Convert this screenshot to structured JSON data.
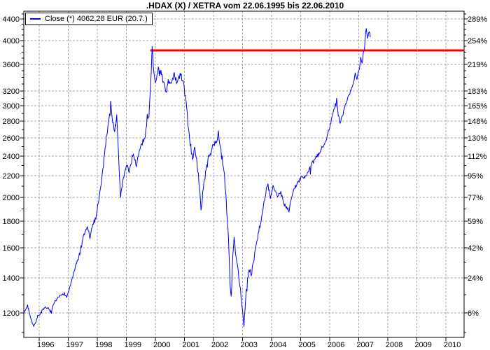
{
  "title": ".HDAX (X) / XETRA vom 22.06.1995 bis 22.06.2010",
  "legend": {
    "label": "Close (*) 4062,28 EUR (20.7.)"
  },
  "colors": {
    "series": "#0000ff",
    "resistance_line": "#ff0000",
    "grid": "#a9a9a9",
    "axis": "#000000",
    "text": "#000000",
    "background": "#ffffff"
  },
  "axes": {
    "y_left": {
      "ticks": [
        4400,
        4000,
        3600,
        3200,
        3000,
        2800,
        2600,
        2400,
        2200,
        2000,
        1800,
        1600,
        1400,
        1200
      ]
    },
    "y_right": {
      "items": [
        {
          "label": "289%",
          "at": 4400
        },
        {
          "label": "254%",
          "at": 4000
        },
        {
          "label": "219%",
          "at": 3600
        },
        {
          "label": "183%",
          "at": 3200
        },
        {
          "label": "165%",
          "at": 3000
        },
        {
          "label": "148%",
          "at": 2800
        },
        {
          "label": "130%",
          "at": 2600
        },
        {
          "label": "112%",
          "at": 2400
        },
        {
          "label": "95%",
          "at": 2200
        },
        {
          "label": "77%",
          "at": 2000
        },
        {
          "label": "59%",
          "at": 1800
        },
        {
          "label": "42%",
          "at": 1600
        },
        {
          "label": "24%",
          "at": 1400
        },
        {
          "label": "6%",
          "at": 1200
        }
      ]
    },
    "x": {
      "ticks": [
        1996,
        1997,
        1998,
        1999,
        2000,
        2001,
        2002,
        2003,
        2004,
        2005,
        2006,
        2007,
        2008,
        2009,
        2010
      ]
    }
  },
  "chart_data": {
    "type": "line",
    "title": ".HDAX (X) / XETRA vom 22.06.1995 bis 22.06.2010",
    "yscale": "log",
    "grid": true,
    "xlim": [
      1995.47,
      2010.63
    ],
    "ylim": [
      1076,
      4555
    ],
    "hline": {
      "value": 3830,
      "start_x": 1999.83,
      "end_x": 2010.63
    },
    "series": [
      {
        "name": "Close",
        "last_value": "4062,28 EUR",
        "last_date": "20.7.",
        "points": [
          [
            1995.47,
            1195
          ],
          [
            1995.6,
            1240
          ],
          [
            1995.72,
            1170
          ],
          [
            1995.81,
            1128
          ],
          [
            1995.95,
            1180
          ],
          [
            1996.1,
            1210
          ],
          [
            1996.25,
            1230
          ],
          [
            1996.4,
            1205
          ],
          [
            1996.55,
            1260
          ],
          [
            1996.7,
            1290
          ],
          [
            1996.85,
            1310
          ],
          [
            1996.95,
            1285
          ],
          [
            1997.1,
            1370
          ],
          [
            1997.25,
            1470
          ],
          [
            1997.4,
            1560
          ],
          [
            1997.52,
            1670
          ],
          [
            1997.65,
            1755
          ],
          [
            1997.75,
            1675
          ],
          [
            1997.85,
            1770
          ],
          [
            1997.95,
            1830
          ],
          [
            1998.05,
            1980
          ],
          [
            1998.15,
            2150
          ],
          [
            1998.25,
            2430
          ],
          [
            1998.37,
            2760
          ],
          [
            1998.46,
            3030
          ],
          [
            1998.53,
            2810
          ],
          [
            1998.6,
            2680
          ],
          [
            1998.67,
            2860
          ],
          [
            1998.74,
            2340
          ],
          [
            1998.8,
            2010
          ],
          [
            1998.9,
            2190
          ],
          [
            1999.0,
            2290
          ],
          [
            1999.12,
            2240
          ],
          [
            1999.22,
            2430
          ],
          [
            1999.35,
            2310
          ],
          [
            1999.45,
            2450
          ],
          [
            1999.55,
            2540
          ],
          [
            1999.65,
            2620
          ],
          [
            1999.72,
            2850
          ],
          [
            1999.78,
            2900
          ],
          [
            1999.84,
            3300
          ],
          [
            1999.89,
            3870
          ],
          [
            1999.95,
            3500
          ],
          [
            2000.02,
            3300
          ],
          [
            2000.1,
            3560
          ],
          [
            2000.19,
            3480
          ],
          [
            2000.28,
            3300
          ],
          [
            2000.37,
            3200
          ],
          [
            2000.46,
            3360
          ],
          [
            2000.55,
            3280
          ],
          [
            2000.65,
            3430
          ],
          [
            2000.75,
            3300
          ],
          [
            2000.85,
            3440
          ],
          [
            2000.97,
            3340
          ],
          [
            2001.08,
            2950
          ],
          [
            2001.16,
            2620
          ],
          [
            2001.28,
            2380
          ],
          [
            2001.36,
            2480
          ],
          [
            2001.44,
            2330
          ],
          [
            2001.5,
            2150
          ],
          [
            2001.57,
            1890
          ],
          [
            2001.65,
            2080
          ],
          [
            2001.75,
            2260
          ],
          [
            2001.85,
            2400
          ],
          [
            2001.95,
            2470
          ],
          [
            2002.05,
            2530
          ],
          [
            2002.17,
            2650
          ],
          [
            2002.28,
            2400
          ],
          [
            2002.36,
            2280
          ],
          [
            2002.44,
            1950
          ],
          [
            2002.52,
            1650
          ],
          [
            2002.57,
            1380
          ],
          [
            2002.61,
            1290
          ],
          [
            2002.67,
            1540
          ],
          [
            2002.71,
            1660
          ],
          [
            2002.78,
            1550
          ],
          [
            2002.85,
            1460
          ],
          [
            2002.93,
            1330
          ],
          [
            2003.0,
            1200
          ],
          [
            2003.05,
            1122
          ],
          [
            2003.13,
            1320
          ],
          [
            2003.22,
            1450
          ],
          [
            2003.3,
            1420
          ],
          [
            2003.4,
            1540
          ],
          [
            2003.5,
            1660
          ],
          [
            2003.6,
            1770
          ],
          [
            2003.7,
            1890
          ],
          [
            2003.8,
            2050
          ],
          [
            2003.88,
            2110
          ],
          [
            2003.96,
            1990
          ],
          [
            2004.05,
            2090
          ],
          [
            2004.14,
            2050
          ],
          [
            2004.23,
            2010
          ],
          [
            2004.32,
            2040
          ],
          [
            2004.42,
            1950
          ],
          [
            2004.52,
            1915
          ],
          [
            2004.6,
            1885
          ],
          [
            2004.7,
            2010
          ],
          [
            2004.82,
            2100
          ],
          [
            2004.95,
            2150
          ],
          [
            2005.05,
            2200
          ],
          [
            2005.15,
            2180
          ],
          [
            2005.28,
            2245
          ],
          [
            2005.4,
            2320
          ],
          [
            2005.52,
            2380
          ],
          [
            2005.63,
            2420
          ],
          [
            2005.75,
            2500
          ],
          [
            2005.88,
            2580
          ],
          [
            2006.0,
            2730
          ],
          [
            2006.12,
            2900
          ],
          [
            2006.24,
            3090
          ],
          [
            2006.3,
            2880
          ],
          [
            2006.36,
            2770
          ],
          [
            2006.46,
            2890
          ],
          [
            2006.58,
            3050
          ],
          [
            2006.68,
            3170
          ],
          [
            2006.78,
            3270
          ],
          [
            2006.88,
            3450
          ],
          [
            2006.94,
            3380
          ],
          [
            2007.01,
            3500
          ],
          [
            2007.07,
            3700
          ],
          [
            2007.12,
            3640
          ],
          [
            2007.17,
            3830
          ],
          [
            2007.22,
            4000
          ],
          [
            2007.26,
            4230
          ],
          [
            2007.31,
            4040
          ],
          [
            2007.36,
            4190
          ],
          [
            2007.4,
            4062.28
          ]
        ]
      }
    ]
  }
}
